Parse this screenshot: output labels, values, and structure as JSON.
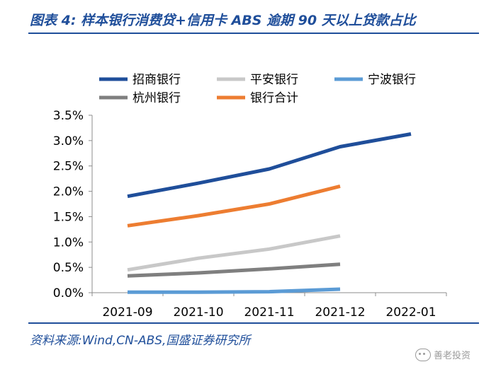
{
  "header": {
    "title": "图表 4:  样本银行消费贷+信用卡 ABS 逾期 90 天以上贷款占比"
  },
  "footer": {
    "source": "资料来源:Wind,CN-ABS,国盛证券研究所",
    "watermark": "善老投资"
  },
  "chart_data": {
    "type": "line",
    "title": "图表 4:  样本银行消费贷+信用卡 ABS 逾期 90 天以上贷款占比",
    "xlabel": "",
    "ylabel": "",
    "categories": [
      "2021-09",
      "2021-10",
      "2021-11",
      "2021-12",
      "2022-01"
    ],
    "ylim": [
      0,
      3.5
    ],
    "yticks": [
      "0.0%",
      "0.5%",
      "1.0%",
      "1.5%",
      "2.0%",
      "2.5%",
      "3.0%",
      "3.5%"
    ],
    "grid": false,
    "legend_position": "top",
    "series": [
      {
        "name": "招商银行",
        "color": "#1f4e9a",
        "values": [
          1.9,
          2.16,
          2.44,
          2.88,
          3.13
        ]
      },
      {
        "name": "平安银行",
        "color": "#c8c8c8",
        "values": [
          0.45,
          0.68,
          0.86,
          1.12,
          null
        ]
      },
      {
        "name": "宁波银行",
        "color": "#5b9bd5",
        "values": [
          0.01,
          0.01,
          0.02,
          0.07,
          null
        ]
      },
      {
        "name": "杭州银行",
        "color": "#7f7f7f",
        "values": [
          0.33,
          0.39,
          0.47,
          0.56,
          null
        ]
      },
      {
        "name": "银行合计",
        "color": "#ed7d31",
        "values": [
          1.32,
          1.52,
          1.75,
          2.1,
          null
        ]
      }
    ]
  }
}
